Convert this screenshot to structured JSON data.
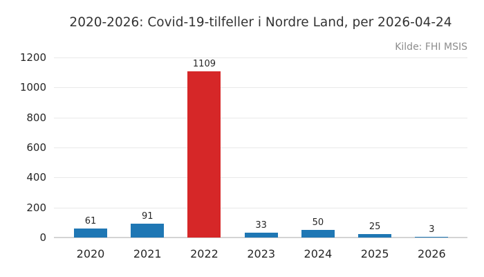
{
  "figure": {
    "title": "2020-2026: Covid-19-tilfeller i Nordre Land, per 2026-04-24",
    "source": "Kilde: FHI MSIS"
  },
  "colors": {
    "bar_default": "#1f77b4",
    "bar_highlight": "#d62728",
    "gridline": "#e9e9e9",
    "baseline": "#d4d4d4",
    "text": "#262626",
    "title_text": "#333333",
    "muted_text": "#8c8c8c",
    "background": "#ffffff"
  },
  "chart_data": {
    "type": "bar",
    "title": "2020-2026: Covid-19-tilfeller i Nordre Land, per 2026-04-24",
    "subtitle": "Kilde: FHI MSIS",
    "categories": [
      "2020",
      "2021",
      "2022",
      "2023",
      "2024",
      "2025",
      "2026"
    ],
    "values": [
      61,
      91,
      1109,
      33,
      50,
      25,
      3
    ],
    "bar_colors": [
      "#1f77b4",
      "#1f77b4",
      "#d62728",
      "#1f77b4",
      "#1f77b4",
      "#1f77b4",
      "#1f77b4"
    ],
    "highlight_category": "2022",
    "value_labels_shown": true,
    "xlabel": "",
    "ylabel": "",
    "ylim": [
      0,
      1200
    ],
    "yticks": [
      0,
      200,
      400,
      600,
      800,
      1000,
      1200
    ],
    "grid": true,
    "legend": "none"
  }
}
